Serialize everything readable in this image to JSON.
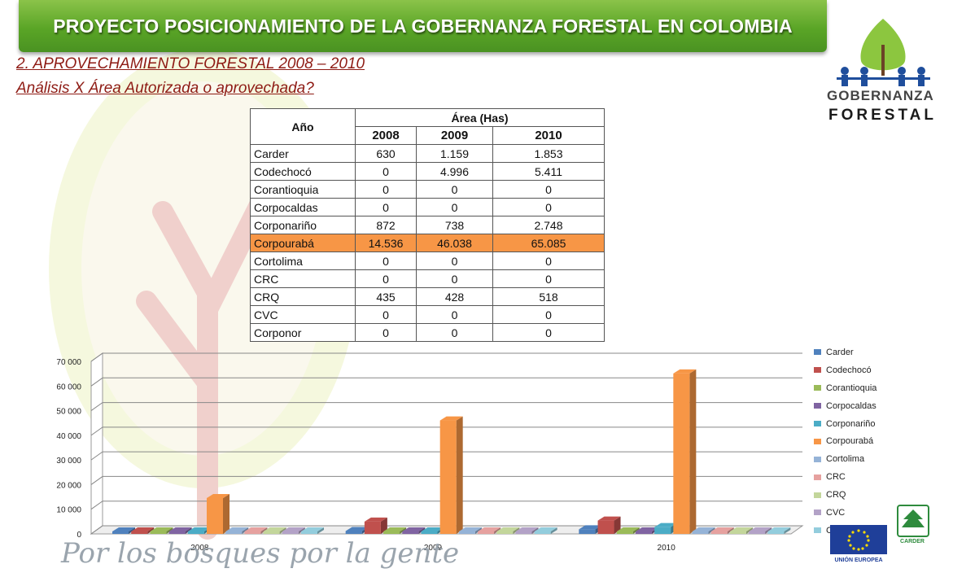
{
  "header": {
    "title": "PROYECTO POSICIONAMIENTO DE LA GOBERNANZA FORESTAL EN COLOMBIA"
  },
  "section": {
    "line1": "2. APROVECHAMIENTO FORESTAL 2008 – 2010",
    "line2": "Análisis X Área Autorizada o aprovechada?"
  },
  "logo": {
    "line1": "GOBERNANZA",
    "line2": "FORESTAL"
  },
  "table": {
    "year_header": "Año",
    "area_header": "Área (Has)",
    "years": [
      "2008",
      "2009",
      "2010"
    ],
    "rows": [
      {
        "name": "Carder",
        "values": [
          "630",
          "1.159",
          "1.853"
        ]
      },
      {
        "name": "Codechocó",
        "values": [
          "0",
          "4.996",
          "5.411"
        ]
      },
      {
        "name": "Corantioquia",
        "values": [
          "0",
          "0",
          "0"
        ]
      },
      {
        "name": "Corpocaldas",
        "values": [
          "0",
          "0",
          "0"
        ]
      },
      {
        "name": "Corponariño",
        "values": [
          "872",
          "738",
          "2.748"
        ]
      },
      {
        "name": "Corpourabá",
        "values": [
          "14.536",
          "46.038",
          "65.085"
        ]
      },
      {
        "name": "Cortolima",
        "values": [
          "0",
          "0",
          "0"
        ]
      },
      {
        "name": "CRC",
        "values": [
          "0",
          "0",
          "0"
        ]
      },
      {
        "name": "CRQ",
        "values": [
          "435",
          "428",
          "518"
        ]
      },
      {
        "name": "CVC",
        "values": [
          "0",
          "0",
          "0"
        ]
      },
      {
        "name": "Corponor",
        "values": [
          "0",
          "0",
          "0"
        ]
      }
    ],
    "highlight_color": "#f79646"
  },
  "chart_data": {
    "type": "bar",
    "categories": [
      "2008",
      "2009",
      "2010"
    ],
    "ylim": [
      0,
      70000
    ],
    "yticks": [
      "0",
      "10 000",
      "20 000",
      "30 000",
      "40 000",
      "50 000",
      "60 000",
      "70 000"
    ],
    "legend_position": "right",
    "series": [
      {
        "name": "Carder",
        "color": "#4f81bd",
        "values": [
          630,
          1159,
          1853
        ]
      },
      {
        "name": "Codechocó",
        "color": "#c0504d",
        "values": [
          0,
          4996,
          5411
        ]
      },
      {
        "name": "Corantioquia",
        "color": "#9bbb59",
        "values": [
          0,
          0,
          0
        ]
      },
      {
        "name": "Corpocaldas",
        "color": "#8064a2",
        "values": [
          0,
          0,
          0
        ]
      },
      {
        "name": "Corponariño",
        "color": "#4bacc6",
        "values": [
          872,
          738,
          2748
        ]
      },
      {
        "name": "Corpourabá",
        "color": "#f79646",
        "values": [
          14536,
          46038,
          65085
        ]
      },
      {
        "name": "Cortolima",
        "color": "#95b3d7",
        "values": [
          0,
          0,
          0
        ]
      },
      {
        "name": "CRC",
        "color": "#e6a19f",
        "values": [
          0,
          0,
          0
        ]
      },
      {
        "name": "CRQ",
        "color": "#c3d69b",
        "values": [
          435,
          428,
          518
        ]
      },
      {
        "name": "CVC",
        "color": "#b3a2c7",
        "values": [
          0,
          0,
          0
        ]
      },
      {
        "name": "Corponor",
        "color": "#93cddd",
        "values": [
          0,
          0,
          0
        ]
      }
    ]
  },
  "footer": {
    "slogan": "Por los bosques por la gente",
    "eu_label": "UNIÓN EUROPEA",
    "carder_label": "CARDER"
  }
}
